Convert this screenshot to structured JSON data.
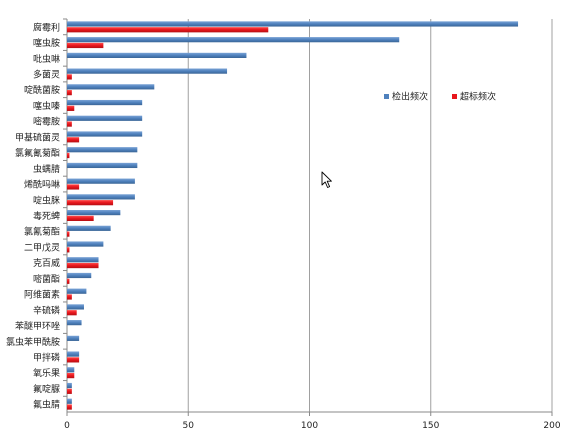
{
  "chart_data": {
    "type": "bar",
    "orientation": "horizontal",
    "categories": [
      "腐霉利",
      "噻虫胺",
      "吡虫啉",
      "多菌灵",
      "啶酰菌胺",
      "噻虫嗪",
      "嘧霉胺",
      "甲基硫菌灵",
      "氯氟氰菊酯",
      "虫螨腈",
      "烯酰吗啉",
      "啶虫脒",
      "毒死蜱",
      "氯氰菊酯",
      "二甲戊灵",
      "克百威",
      "嘧菌酯",
      "阿维菌素",
      "辛硫磷",
      "苯醚甲环唑",
      "氯虫苯甲酰胺",
      "甲拌磷",
      "氧乐果",
      "氟啶脲",
      "氟虫腈"
    ],
    "series": [
      {
        "name": "检出频次",
        "color": "#4f81bd",
        "values": [
          186,
          137,
          74,
          66,
          36,
          31,
          31,
          31,
          29,
          29,
          28,
          28,
          22,
          18,
          15,
          13,
          10,
          8,
          7,
          6,
          5,
          5,
          3,
          2,
          2
        ]
      },
      {
        "name": "超标频次",
        "color": "#e8161c",
        "values": [
          83,
          15,
          0,
          2,
          2,
          3,
          2,
          5,
          1,
          0,
          5,
          19,
          11,
          1,
          1,
          13,
          1,
          2,
          4,
          0,
          0,
          5,
          3,
          2,
          2
        ]
      }
    ],
    "xlim": [
      0,
      200
    ],
    "x_ticks": [
      "0",
      "50",
      "100",
      "150",
      "200"
    ],
    "grid": true,
    "legend_position": "right"
  },
  "colors": {
    "primary_series": "#4f81bd",
    "secondary_series": "#e8161c",
    "gridline": "#a0a0a0"
  },
  "cursor_icon": "mouse-pointer-icon"
}
